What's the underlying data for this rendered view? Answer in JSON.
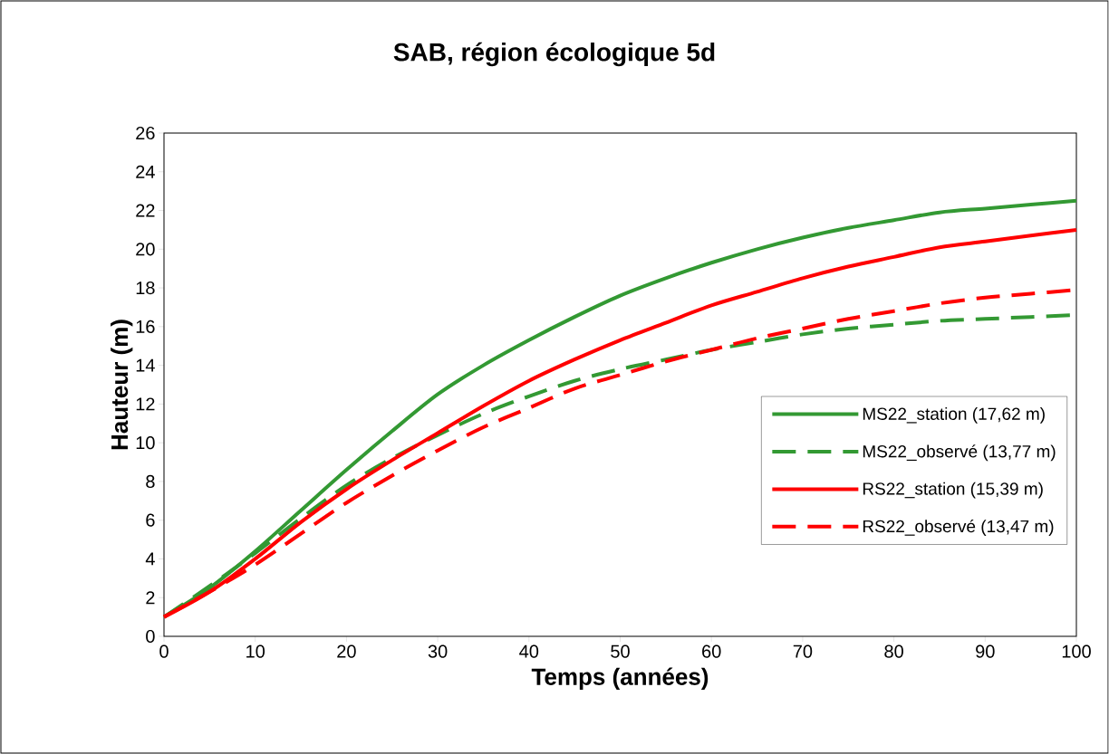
{
  "chart_data": {
    "type": "line",
    "title": "SAB, région écologique 5d",
    "xlabel": "Temps (années)",
    "ylabel": "Hauteur (m)",
    "x": [
      0,
      5,
      10,
      15,
      20,
      25,
      30,
      35,
      40,
      45,
      50,
      55,
      60,
      65,
      70,
      75,
      80,
      85,
      90,
      95,
      100
    ],
    "series": [
      {
        "name": "MS22_station (17,62 m)",
        "color": "#339933",
        "line_style": "solid",
        "values": [
          1,
          2.5,
          4.4,
          6.5,
          8.6,
          10.6,
          12.5,
          14.0,
          15.3,
          16.5,
          17.6,
          18.5,
          19.3,
          20.0,
          20.6,
          21.1,
          21.5,
          21.9,
          22.1,
          22.3,
          22.5
        ]
      },
      {
        "name": "MS22_observé (13,77 m)",
        "color": "#339933",
        "line_style": "dashed",
        "values": [
          1,
          2.6,
          4.3,
          6.1,
          7.8,
          9.2,
          10.4,
          11.5,
          12.4,
          13.2,
          13.8,
          14.3,
          14.8,
          15.2,
          15.6,
          15.9,
          16.1,
          16.3,
          16.4,
          16.5,
          16.6
        ]
      },
      {
        "name": "RS22_station (15,39 m)",
        "color": "#ff0000",
        "line_style": "solid",
        "values": [
          1,
          2.3,
          4.0,
          5.9,
          7.6,
          9.1,
          10.5,
          11.9,
          13.2,
          14.3,
          15.3,
          16.2,
          17.1,
          17.8,
          18.5,
          19.1,
          19.6,
          20.1,
          20.4,
          20.7,
          21.0
        ]
      },
      {
        "name": "RS22_observé (13,47 m)",
        "color": "#ff0000",
        "line_style": "dashed",
        "values": [
          1,
          2.3,
          3.7,
          5.3,
          6.9,
          8.3,
          9.6,
          10.8,
          11.8,
          12.8,
          13.5,
          14.2,
          14.8,
          15.4,
          15.9,
          16.4,
          16.8,
          17.2,
          17.5,
          17.7,
          17.9
        ]
      }
    ],
    "xlim": [
      0,
      100
    ],
    "xticks": [
      0,
      10,
      20,
      30,
      40,
      50,
      60,
      70,
      80,
      90,
      100
    ],
    "ylim": [
      0,
      26
    ],
    "yticks": [
      0,
      2,
      4,
      6,
      8,
      10,
      12,
      14,
      16,
      18,
      20,
      22,
      24,
      26
    ],
    "grid": false,
    "legend": "right",
    "marker": "none"
  }
}
